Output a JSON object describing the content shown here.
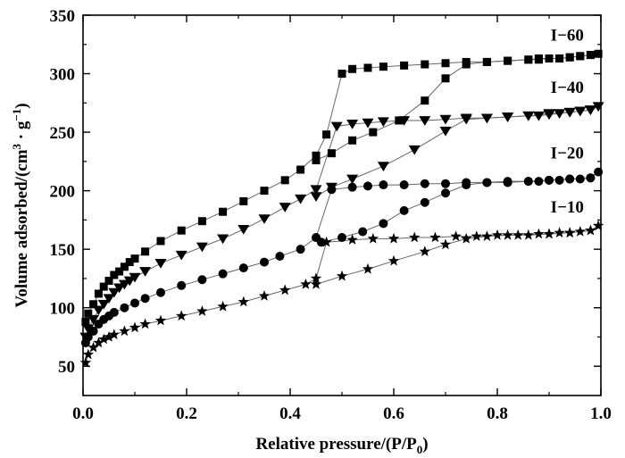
{
  "chart_data": {
    "type": "scatter",
    "title": "",
    "xlabel": {
      "main": "Relative pressure/(P/P",
      "sub": "0",
      "end": ")"
    },
    "ylabel": {
      "main": "Volume adsorbed/(cm",
      "sup1": "3",
      "mid": " · g",
      "sup2": "−1",
      "end": ")"
    },
    "xlim": [
      0.0,
      1.0
    ],
    "ylim": [
      25,
      350
    ],
    "x_ticks": [
      "0.0",
      "0.2",
      "0.4",
      "0.6",
      "0.8",
      "1.0"
    ],
    "y_ticks": [
      "50",
      "100",
      "150",
      "200",
      "250",
      "300",
      "350"
    ],
    "grid": false,
    "series": [
      {
        "name": "I−60",
        "marker": "square",
        "adsorption": [
          [
            0.005,
            88
          ],
          [
            0.01,
            95
          ],
          [
            0.02,
            103
          ],
          [
            0.03,
            112
          ],
          [
            0.04,
            118
          ],
          [
            0.05,
            123
          ],
          [
            0.06,
            128
          ],
          [
            0.07,
            131
          ],
          [
            0.08,
            135
          ],
          [
            0.09,
            139
          ],
          [
            0.1,
            142
          ],
          [
            0.12,
            148
          ],
          [
            0.15,
            157
          ],
          [
            0.19,
            166
          ],
          [
            0.23,
            174
          ],
          [
            0.27,
            182
          ],
          [
            0.31,
            191
          ],
          [
            0.35,
            200
          ],
          [
            0.39,
            209
          ],
          [
            0.42,
            218
          ],
          [
            0.45,
            230
          ],
          [
            0.47,
            248
          ],
          [
            0.5,
            300
          ],
          [
            0.52,
            304
          ],
          [
            0.55,
            305
          ],
          [
            0.58,
            306
          ],
          [
            0.62,
            307
          ],
          [
            0.66,
            308
          ],
          [
            0.7,
            309
          ],
          [
            0.74,
            310
          ],
          [
            0.78,
            310
          ],
          [
            0.82,
            311
          ],
          [
            0.86,
            312
          ],
          [
            0.88,
            312
          ],
          [
            0.9,
            313
          ],
          [
            0.92,
            313
          ],
          [
            0.94,
            314
          ],
          [
            0.96,
            315
          ],
          [
            0.98,
            316
          ],
          [
            0.995,
            317
          ]
        ],
        "desorption": [
          [
            0.995,
            317
          ],
          [
            0.98,
            316
          ],
          [
            0.96,
            315
          ],
          [
            0.94,
            314
          ],
          [
            0.92,
            313
          ],
          [
            0.9,
            313
          ],
          [
            0.88,
            313
          ],
          [
            0.86,
            312
          ],
          [
            0.82,
            311
          ],
          [
            0.78,
            310
          ],
          [
            0.74,
            308
          ],
          [
            0.7,
            296
          ],
          [
            0.66,
            277
          ],
          [
            0.61,
            260
          ],
          [
            0.56,
            250
          ],
          [
            0.52,
            243
          ],
          [
            0.48,
            232
          ],
          [
            0.45,
            226
          ]
        ]
      },
      {
        "name": "I−40",
        "marker": "triangle-down",
        "adsorption": [
          [
            0.005,
            75
          ],
          [
            0.01,
            82
          ],
          [
            0.02,
            90
          ],
          [
            0.03,
            98
          ],
          [
            0.04,
            103
          ],
          [
            0.05,
            108
          ],
          [
            0.06,
            113
          ],
          [
            0.07,
            117
          ],
          [
            0.08,
            120
          ],
          [
            0.09,
            123
          ],
          [
            0.1,
            126
          ],
          [
            0.12,
            131
          ],
          [
            0.15,
            138
          ],
          [
            0.19,
            145
          ],
          [
            0.23,
            152
          ],
          [
            0.27,
            159
          ],
          [
            0.31,
            167
          ],
          [
            0.35,
            176
          ],
          [
            0.39,
            186
          ],
          [
            0.42,
            193
          ],
          [
            0.45,
            201
          ],
          [
            0.49,
            255
          ],
          [
            0.52,
            257
          ],
          [
            0.55,
            258
          ],
          [
            0.58,
            259
          ],
          [
            0.62,
            260
          ],
          [
            0.66,
            260
          ],
          [
            0.7,
            261
          ],
          [
            0.74,
            262
          ],
          [
            0.78,
            262
          ],
          [
            0.82,
            263
          ],
          [
            0.86,
            264
          ],
          [
            0.88,
            264
          ],
          [
            0.9,
            265
          ],
          [
            0.92,
            266
          ],
          [
            0.94,
            267
          ],
          [
            0.96,
            268
          ],
          [
            0.98,
            269
          ],
          [
            0.995,
            272
          ]
        ],
        "desorption": [
          [
            0.995,
            272
          ],
          [
            0.98,
            269
          ],
          [
            0.96,
            268
          ],
          [
            0.94,
            267
          ],
          [
            0.9,
            266
          ],
          [
            0.86,
            264
          ],
          [
            0.82,
            263
          ],
          [
            0.78,
            262
          ],
          [
            0.74,
            261
          ],
          [
            0.7,
            251
          ],
          [
            0.64,
            235
          ],
          [
            0.58,
            221
          ],
          [
            0.52,
            210
          ],
          [
            0.48,
            203
          ],
          [
            0.45,
            195
          ]
        ]
      },
      {
        "name": "I−20",
        "marker": "circle",
        "adsorption": [
          [
            0.005,
            70
          ],
          [
            0.01,
            75
          ],
          [
            0.02,
            80
          ],
          [
            0.03,
            86
          ],
          [
            0.04,
            90
          ],
          [
            0.05,
            93
          ],
          [
            0.06,
            96
          ],
          [
            0.08,
            100
          ],
          [
            0.1,
            104
          ],
          [
            0.12,
            108
          ],
          [
            0.15,
            113
          ],
          [
            0.19,
            119
          ],
          [
            0.23,
            124
          ],
          [
            0.27,
            129
          ],
          [
            0.31,
            134
          ],
          [
            0.35,
            139
          ],
          [
            0.38,
            144
          ],
          [
            0.42,
            150
          ],
          [
            0.45,
            160
          ],
          [
            0.48,
            201
          ],
          [
            0.52,
            203
          ],
          [
            0.55,
            204
          ],
          [
            0.58,
            205
          ],
          [
            0.62,
            205
          ],
          [
            0.66,
            206
          ],
          [
            0.7,
            206
          ],
          [
            0.74,
            207
          ],
          [
            0.78,
            207
          ],
          [
            0.82,
            208
          ],
          [
            0.86,
            208
          ],
          [
            0.88,
            208
          ],
          [
            0.9,
            209
          ],
          [
            0.92,
            209
          ],
          [
            0.94,
            210
          ],
          [
            0.96,
            210
          ],
          [
            0.98,
            211
          ],
          [
            0.995,
            216
          ]
        ],
        "desorption": [
          [
            0.995,
            216
          ],
          [
            0.98,
            211
          ],
          [
            0.94,
            210
          ],
          [
            0.9,
            209
          ],
          [
            0.86,
            208
          ],
          [
            0.82,
            207
          ],
          [
            0.78,
            207
          ],
          [
            0.74,
            205
          ],
          [
            0.7,
            198
          ],
          [
            0.66,
            190
          ],
          [
            0.62,
            183
          ],
          [
            0.58,
            172
          ],
          [
            0.54,
            165
          ],
          [
            0.5,
            160
          ],
          [
            0.46,
            156
          ]
        ]
      },
      {
        "name": "I−10",
        "marker": "star",
        "adsorption": [
          [
            0.005,
            53
          ],
          [
            0.01,
            60
          ],
          [
            0.02,
            66
          ],
          [
            0.03,
            70
          ],
          [
            0.04,
            73
          ],
          [
            0.05,
            75
          ],
          [
            0.06,
            77
          ],
          [
            0.08,
            80
          ],
          [
            0.1,
            83
          ],
          [
            0.12,
            86
          ],
          [
            0.15,
            89
          ],
          [
            0.19,
            93
          ],
          [
            0.23,
            97
          ],
          [
            0.27,
            101
          ],
          [
            0.31,
            105
          ],
          [
            0.35,
            110
          ],
          [
            0.39,
            115
          ],
          [
            0.43,
            120
          ],
          [
            0.45,
            125
          ],
          [
            0.47,
            156
          ],
          [
            0.52,
            158
          ],
          [
            0.56,
            159
          ],
          [
            0.6,
            159
          ],
          [
            0.64,
            160
          ],
          [
            0.68,
            160
          ],
          [
            0.72,
            161
          ],
          [
            0.76,
            161
          ],
          [
            0.8,
            162
          ],
          [
            0.84,
            162
          ],
          [
            0.88,
            163
          ],
          [
            0.9,
            163
          ],
          [
            0.92,
            164
          ],
          [
            0.94,
            164
          ],
          [
            0.96,
            165
          ],
          [
            0.98,
            166
          ],
          [
            0.995,
            170
          ]
        ],
        "desorption": [
          [
            0.995,
            170
          ],
          [
            0.98,
            166
          ],
          [
            0.94,
            164
          ],
          [
            0.9,
            163
          ],
          [
            0.86,
            162
          ],
          [
            0.82,
            162
          ],
          [
            0.78,
            161
          ],
          [
            0.74,
            159
          ],
          [
            0.7,
            154
          ],
          [
            0.66,
            148
          ],
          [
            0.6,
            140
          ],
          [
            0.55,
            133
          ],
          [
            0.5,
            127
          ],
          [
            0.45,
            120
          ]
        ]
      }
    ]
  }
}
